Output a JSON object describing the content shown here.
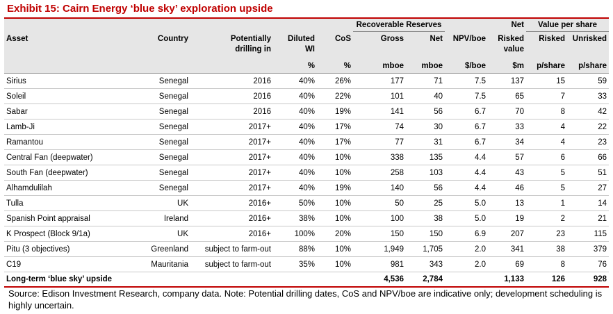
{
  "title": "Exhibit 15: Cairn Energy ‘blue sky’ exploration upside",
  "group_headers": {
    "recoverable_reserves": "Recoverable Reserves",
    "net": "Net",
    "value_per_share": "Value per share"
  },
  "headers": {
    "asset": "Asset",
    "country": "Country",
    "drilling_l1": "Potentially",
    "drilling_l2": "drilling in",
    "wi_l1": "Diluted",
    "wi_l2": "WI",
    "cos": "CoS",
    "gross": "Gross",
    "net": "Net",
    "npv": "NPV/boe",
    "risked_value_l1": "Risked",
    "risked_value_l2": "value",
    "risked": "Risked",
    "unrisked": "Unrisked"
  },
  "units": {
    "wi": "%",
    "cos": "%",
    "gross": "mboe",
    "net": "mboe",
    "npv": "$/boe",
    "risked_value": "$m",
    "risked": "p/share",
    "unrisked": "p/share"
  },
  "rows": [
    {
      "asset": "Sirius",
      "country": "Senegal",
      "drilling": "2016",
      "wi": "40%",
      "cos": "26%",
      "gross": "177",
      "net": "71",
      "npv": "7.5",
      "risked_value": "137",
      "risked": "15",
      "unrisked": "59"
    },
    {
      "asset": "Soleil",
      "country": "Senegal",
      "drilling": "2016",
      "wi": "40%",
      "cos": "22%",
      "gross": "101",
      "net": "40",
      "npv": "7.5",
      "risked_value": "65",
      "risked": "7",
      "unrisked": "33"
    },
    {
      "asset": "Sabar",
      "country": "Senegal",
      "drilling": "2016",
      "wi": "40%",
      "cos": "19%",
      "gross": "141",
      "net": "56",
      "npv": "6.7",
      "risked_value": "70",
      "risked": "8",
      "unrisked": "42"
    },
    {
      "asset": "Lamb-Ji",
      "country": "Senegal",
      "drilling": "2017+",
      "wi": "40%",
      "cos": "17%",
      "gross": "74",
      "net": "30",
      "npv": "6.7",
      "risked_value": "33",
      "risked": "4",
      "unrisked": "22"
    },
    {
      "asset": "Ramantou",
      "country": "Senegal",
      "drilling": "2017+",
      "wi": "40%",
      "cos": "17%",
      "gross": "77",
      "net": "31",
      "npv": "6.7",
      "risked_value": "34",
      "risked": "4",
      "unrisked": "23"
    },
    {
      "asset": "Central Fan (deepwater)",
      "country": "Senegal",
      "drilling": "2017+",
      "wi": "40%",
      "cos": "10%",
      "gross": "338",
      "net": "135",
      "npv": "4.4",
      "risked_value": "57",
      "risked": "6",
      "unrisked": "66"
    },
    {
      "asset": "South Fan (deepwater)",
      "country": "Senegal",
      "drilling": "2017+",
      "wi": "40%",
      "cos": "10%",
      "gross": "258",
      "net": "103",
      "npv": "4.4",
      "risked_value": "43",
      "risked": "5",
      "unrisked": "51"
    },
    {
      "asset": "Alhamdulilah",
      "country": "Senegal",
      "drilling": "2017+",
      "wi": "40%",
      "cos": "19%",
      "gross": "140",
      "net": "56",
      "npv": "4.4",
      "risked_value": "46",
      "risked": "5",
      "unrisked": "27"
    },
    {
      "asset": "Tulla",
      "country": "UK",
      "drilling": "2016+",
      "wi": "50%",
      "cos": "10%",
      "gross": "50",
      "net": "25",
      "npv": "5.0",
      "risked_value": "13",
      "risked": "1",
      "unrisked": "14"
    },
    {
      "asset": "Spanish Point appraisal",
      "country": "Ireland",
      "drilling": "2016+",
      "wi": "38%",
      "cos": "10%",
      "gross": "100",
      "net": "38",
      "npv": "5.0",
      "risked_value": "19",
      "risked": "2",
      "unrisked": "21"
    },
    {
      "asset": "K Prospect (Block 9/1a)",
      "country": "UK",
      "drilling": "2016+",
      "wi": "100%",
      "cos": "20%",
      "gross": "150",
      "net": "150",
      "npv": "6.9",
      "risked_value": "207",
      "risked": "23",
      "unrisked": "115"
    },
    {
      "asset": "Pitu (3 objectives)",
      "country": "Greenland",
      "drilling": "subject to farm-out",
      "wi": "88%",
      "cos": "10%",
      "gross": "1,949",
      "net": "1,705",
      "npv": "2.0",
      "risked_value": "341",
      "risked": "38",
      "unrisked": "379"
    },
    {
      "asset": "C19",
      "country": "Mauritania",
      "drilling": "subject to farm-out",
      "wi": "35%",
      "cos": "10%",
      "gross": "981",
      "net": "343",
      "npv": "2.0",
      "risked_value": "69",
      "risked": "8",
      "unrisked": "76"
    }
  ],
  "total": {
    "label": "Long-term ‘blue sky’ upside",
    "gross": "4,536",
    "net": "2,784",
    "risked_value": "1,133",
    "risked": "126",
    "unrisked": "928"
  },
  "source": "Source: Edison Investment Research, company data. Note: Potential drilling dates, CoS and NPV/boe are indicative only; development scheduling is highly uncertain."
}
